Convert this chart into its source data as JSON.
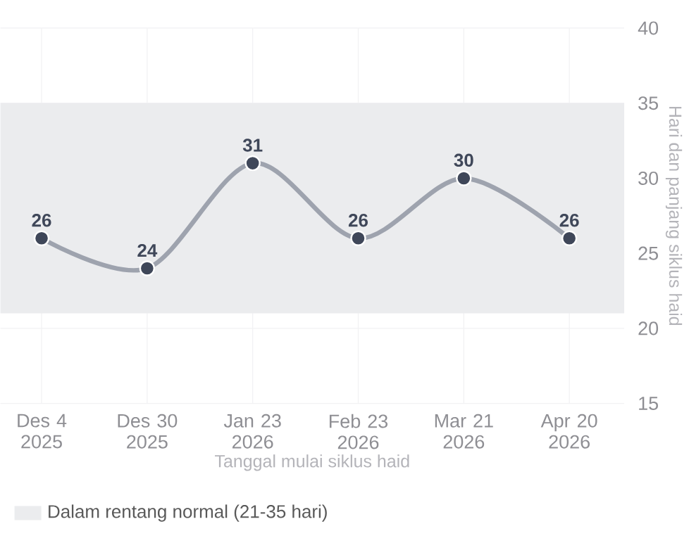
{
  "chart_data": {
    "type": "line",
    "xlabel": "Tanggal mulai siklus haid",
    "ylabel": "Hari dan panjang siklus haid",
    "categories": [
      "Des 4 2025",
      "Des 30 2025",
      "Jan 23 2026",
      "Feb 23 2026",
      "Mar 21 2026",
      "Apr 20 2026"
    ],
    "series": [
      {
        "color": "#9ea3ae",
        "values": [
          26,
          24,
          31,
          26,
          30,
          26
        ]
      }
    ],
    "ylim": [
      15,
      40
    ],
    "yticks": [
      15,
      20,
      25,
      30,
      35,
      40
    ],
    "bands": [
      {
        "axis": "y",
        "from": 21,
        "to": 35,
        "label": "Dalam rentang normal (21-35 hari)",
        "color": "#ebecee"
      }
    ],
    "grid": true,
    "legend": "bottom left",
    "marker": "circle",
    "line_style": "solid",
    "data_labels": true
  }
}
